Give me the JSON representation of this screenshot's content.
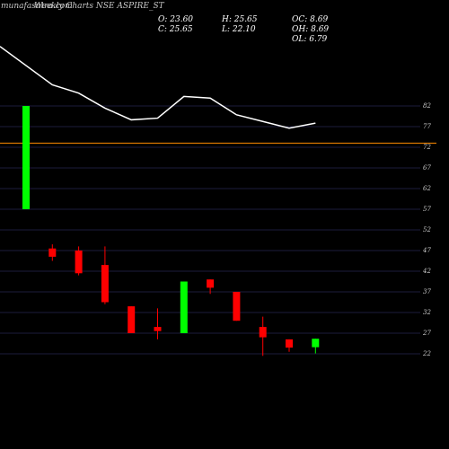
{
  "header": {
    "watermark": "munafasutra.com",
    "title": "Weekly Charts NSE ASPIRE_ST"
  },
  "ohlc": {
    "open": "O: 23.60",
    "high": "H: 25.65",
    "oc": "OC: 8.69",
    "close": "C: 25.65",
    "low": "L: 22.10",
    "oh": "OH: 8.69",
    "ol": "OL: 6.79"
  },
  "colors": {
    "background": "#000000",
    "up": "#00ff00",
    "down": "#ff0000",
    "grid": "#1c1c3c",
    "ref_line": "#ff8c00",
    "line": "#ffffff",
    "text": "#c8c8c8"
  },
  "chart_data": {
    "type": "candlestick",
    "title": "Weekly Charts NSE ASPIRE_ST",
    "ylim": [
      21,
      84
    ],
    "yticks": [
      22,
      27,
      32,
      37,
      42,
      47,
      52,
      57,
      62,
      67,
      72,
      77,
      82
    ],
    "tick_labels": [
      "22",
      "27",
      "32",
      "37",
      "42",
      "47",
      "52",
      "57",
      "62",
      "67",
      "72",
      "77",
      "82"
    ],
    "reference_line": 73,
    "candles": [
      {
        "open": 57,
        "high": 82,
        "low": 57,
        "close": 82
      },
      {
        "open": 47.5,
        "high": 48.5,
        "low": 44.5,
        "close": 45.5
      },
      {
        "open": 47,
        "high": 48,
        "low": 41,
        "close": 41.5
      },
      {
        "open": 43.5,
        "high": 48,
        "low": 34,
        "close": 34.5
      },
      {
        "open": 33.5,
        "high": 33.5,
        "low": 27,
        "close": 27
      },
      {
        "open": 28.5,
        "high": 33,
        "low": 25.5,
        "close": 27.5
      },
      {
        "open": 27,
        "high": 39.5,
        "low": 27,
        "close": 39.5
      },
      {
        "open": 40,
        "high": 40,
        "low": 36.5,
        "close": 38
      },
      {
        "open": 37,
        "high": 37,
        "low": 30,
        "close": 30
      },
      {
        "open": 28.5,
        "high": 31,
        "low": 21.5,
        "close": 26
      },
      {
        "open": 25.5,
        "high": 25.5,
        "low": 22.5,
        "close": 23.5
      },
      {
        "open": 23.6,
        "high": 25.65,
        "low": 22.1,
        "close": 25.65
      }
    ],
    "volume_line": [
      68,
      45,
      40,
      31,
      24,
      25,
      38,
      37,
      27,
      23,
      19,
      22
    ]
  }
}
